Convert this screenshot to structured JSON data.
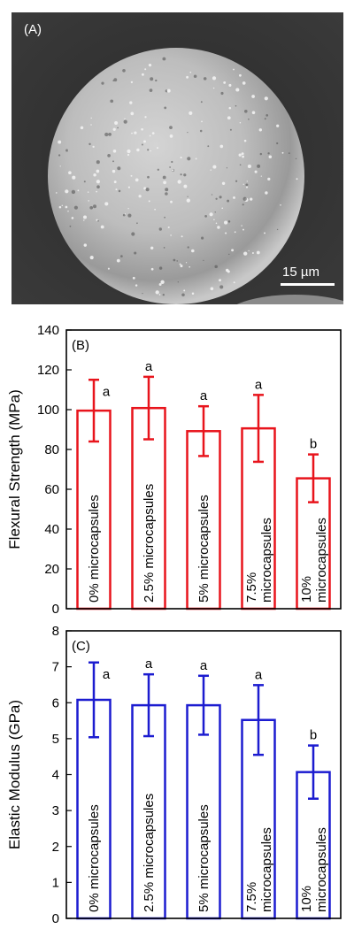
{
  "sem_image": {
    "panel_label": "(A)",
    "scale_bar_label": "15 µm"
  },
  "chart_data": [
    {
      "type": "bar",
      "panel_label": "(B)",
      "title": "",
      "xlabel": "",
      "ylabel": "Flexural Strength (MPa)",
      "ylim": [
        0,
        140
      ],
      "yticks": [
        0,
        20,
        40,
        60,
        80,
        100,
        120,
        140
      ],
      "categories": [
        "0% microcapsules",
        "2.5% microcapsules",
        "5% microcapsules",
        "7.5% microcapsules",
        "10% microcapsules"
      ],
      "category_lines": [
        [
          "0% microcapsules"
        ],
        [
          "2.5% microcapsules"
        ],
        [
          "5% microcapsules"
        ],
        [
          "7.5%",
          "microcapsules"
        ],
        [
          "10%",
          "microcapsules"
        ]
      ],
      "values": [
        99.5,
        100.8,
        89.2,
        90.6,
        65.5
      ],
      "errors": [
        15.5,
        15.7,
        12.5,
        16.8,
        12.0
      ],
      "significance_letters": [
        "a",
        "a",
        "a",
        "a",
        "b"
      ],
      "color": "#e8141c",
      "grid": false,
      "legend": "none"
    },
    {
      "type": "bar",
      "panel_label": "(C)",
      "title": "",
      "xlabel": "",
      "ylabel": "Elastic Modulus (GPa)",
      "ylim": [
        0,
        8
      ],
      "yticks": [
        0,
        1,
        2,
        3,
        4,
        5,
        6,
        7,
        8
      ],
      "categories": [
        "0% microcapsules",
        "2.5% microcapsules",
        "5% microcapsules",
        "7.5% microcapsules",
        "10% microcapsules"
      ],
      "category_lines": [
        [
          "0% microcapsules"
        ],
        [
          "2.5% microcapsules"
        ],
        [
          "5% microcapsules"
        ],
        [
          "7.5%",
          "microcapsules"
        ],
        [
          "10%",
          "microcapsules"
        ]
      ],
      "values": [
        6.08,
        5.93,
        5.93,
        5.52,
        4.07
      ],
      "errors": [
        1.04,
        0.86,
        0.82,
        0.97,
        0.74
      ],
      "significance_letters": [
        "a",
        "a",
        "a",
        "a",
        "b"
      ],
      "color": "#1c1cd0",
      "grid": false,
      "legend": "none"
    }
  ]
}
